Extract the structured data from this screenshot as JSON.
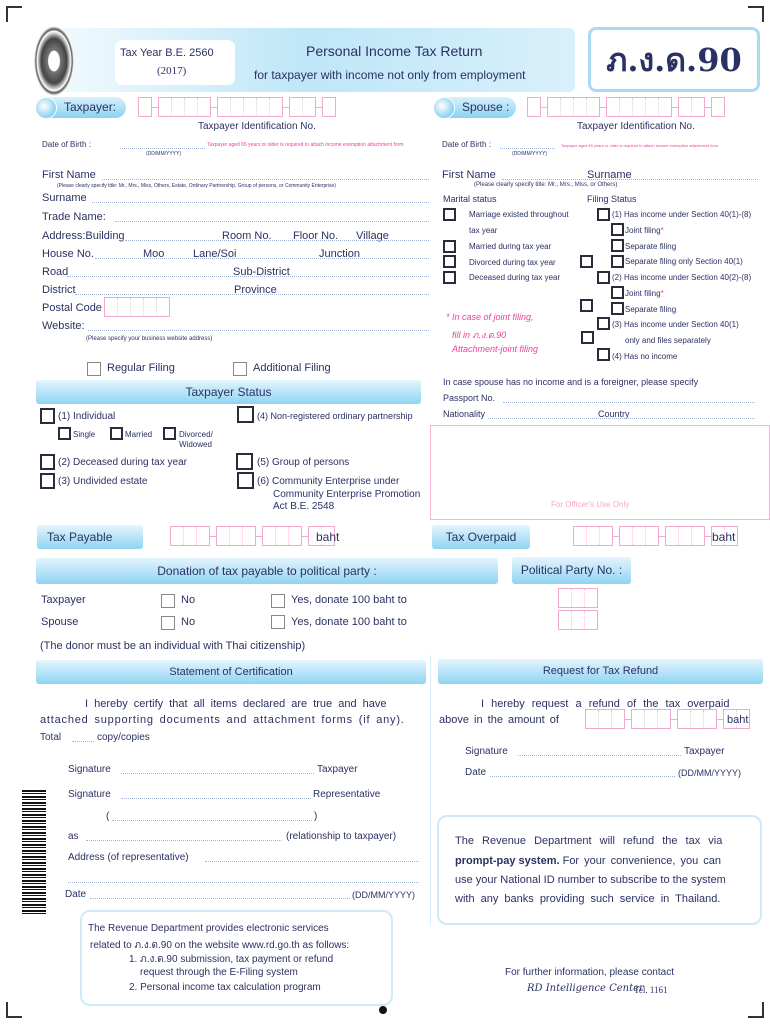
{
  "header": {
    "tax_year": "Tax Year B.E. 2560",
    "year_ad": "(2017)",
    "title": "Personal Income Tax Return",
    "subtitle": "for taxpayer with income not only from employment",
    "form_code": "ภ.ง.ด.90",
    "seal_text": "Revenue Department seal"
  },
  "taxpayer": {
    "label": "Taxpayer:",
    "id_label": "Taxpayer Identification No.",
    "dob_label": "Date of Birth :",
    "dob_format": "(DD/MM/YYYY)",
    "dob_note": "Taxpayer aged 65 years or older is required to attach income exemption attachment form",
    "first_name": "First Name",
    "first_name_note": "(Please clearly specify title: Mr., Mrs., Miss, Others, Estate, Ordinary Partnership, Group of persons, or Community Enterprise)",
    "surname": "Surname",
    "trade_name": "Trade Name:",
    "address_building": "Address:Building",
    "room": "Room No.",
    "floor": "Floor No.",
    "village": "Village",
    "house": "House No.",
    "moo": "Moo",
    "lane": "Lane/Soi",
    "junction": "Junction",
    "road": "Road",
    "subdistrict": "Sub-District",
    "district": "District",
    "province": "Province",
    "postal": "Postal Code",
    "website": "Website:",
    "website_note": "(Please specify your business website address)",
    "regular": "Regular Filing",
    "additional": "Additional Filing"
  },
  "spouse": {
    "label": "Spouse :",
    "id_label": "Taxpayer Identification No.",
    "dob_label": "Date of Birth :",
    "dob_format": "(DD/MM/YYYY)",
    "dob_note": "Taxpayer aged 65 years or older is required to attach income exemption attachment form",
    "first_name": "First Name",
    "surname": "Surname",
    "name_note": "(Please clearly specify title: Mr., Mrs., Miss, or Others)",
    "marital_label": "Marital status",
    "filing_label": "Filing Status",
    "marital": [
      "Marriage existed throughout",
      "tax year",
      "Married during tax year",
      "Divorced during tax year",
      "Deceased during tax year"
    ],
    "filing": {
      "f1": "(1) Has income under Section 40(1)-(8)",
      "joint": "Joint filing",
      "star": "*",
      "separate": "Separate filing",
      "separate_only": "Separate filing only Section 40(1)",
      "f2": "(2) Has income under Section 40(2)-(8)",
      "f3a": "(3) Has income under Section 40(1)",
      "f3b": "only and files separately",
      "f4": "(4) Has no income"
    },
    "joint_note": [
      "* In case of joint filing,",
      "fill in ภ.ง.ด.90",
      "Attachment-joint filing"
    ],
    "foreign_note": "In case spouse has no income and is a foreigner, please specify",
    "passport": "Passport No.",
    "nationality": "Nationality",
    "country": "Country"
  },
  "status": {
    "title": "Taxpayer Status",
    "individual": "(1) Individual",
    "single": "Single",
    "married": "Married",
    "divorced": "Divorced/",
    "widowed": "Widowed",
    "deceased": "(2) Deceased during tax year",
    "undivided": "(3) Undivided estate",
    "partnership": "(4) Non-registered ordinary partnership",
    "group": "(5) Group of persons",
    "community": [
      "(6) Community Enterprise under",
      "Community Enterprise Promotion",
      "Act B.E. 2548"
    ]
  },
  "officer": "For Officer's Use Only",
  "tax": {
    "payable": "Tax Payable",
    "overpaid": "Tax Overpaid",
    "baht": "baht"
  },
  "donation": {
    "title": "Donation of tax payable to political party :",
    "party_no": "Political Party No. :",
    "taxpayer": "Taxpayer",
    "spouse": "Spouse",
    "no": "No",
    "yes": "Yes, donate 100 baht to",
    "note": "(The donor must be an individual with Thai citizenship)"
  },
  "cert": {
    "title": "Statement of Certification",
    "line1": "I hereby certify that all items declared are true and have",
    "line2": "attached supporting documents and attachment forms (if any).",
    "total": "Total",
    "copies": "copy/copies",
    "signature": "Signature",
    "taxpayer": "Taxpayer",
    "representative": "Representative",
    "open": "(",
    "close": ")",
    "as": "as",
    "relationship": "(relationship to taxpayer)",
    "address": "Address (of representative)",
    "date": "Date",
    "date_format": "(DD/MM/YYYY)"
  },
  "refund": {
    "title": "Request for Tax Refund",
    "line1": "I hereby request a refund of the tax overpaid",
    "line2": "above in the amount of",
    "baht": "baht",
    "signature": "Signature",
    "taxpayer": "Taxpayer",
    "date": "Date",
    "date_format": "(DD/MM/YYYY)",
    "promptpay": [
      "The Revenue Department will refund the tax via",
      "prompt-pay system.",
      "For your convenience, you can",
      "use your National ID number to subscribe to the system",
      "with any banks providing such service in Thailand."
    ]
  },
  "eservice": [
    "The Revenue Department provides electronic services",
    "related to ภ.ง.ด.90 on the website www.rd.go.th as follows:",
    "1. ภ.ง.ด.90 submission, tax payment or refund",
    "request through the E-Filing system",
    "2. Personal income tax calculation program"
  ],
  "contact": {
    "line1": "For further information, please contact",
    "center": "RD Intelligence Center",
    "tel": "Tel. 1161"
  }
}
